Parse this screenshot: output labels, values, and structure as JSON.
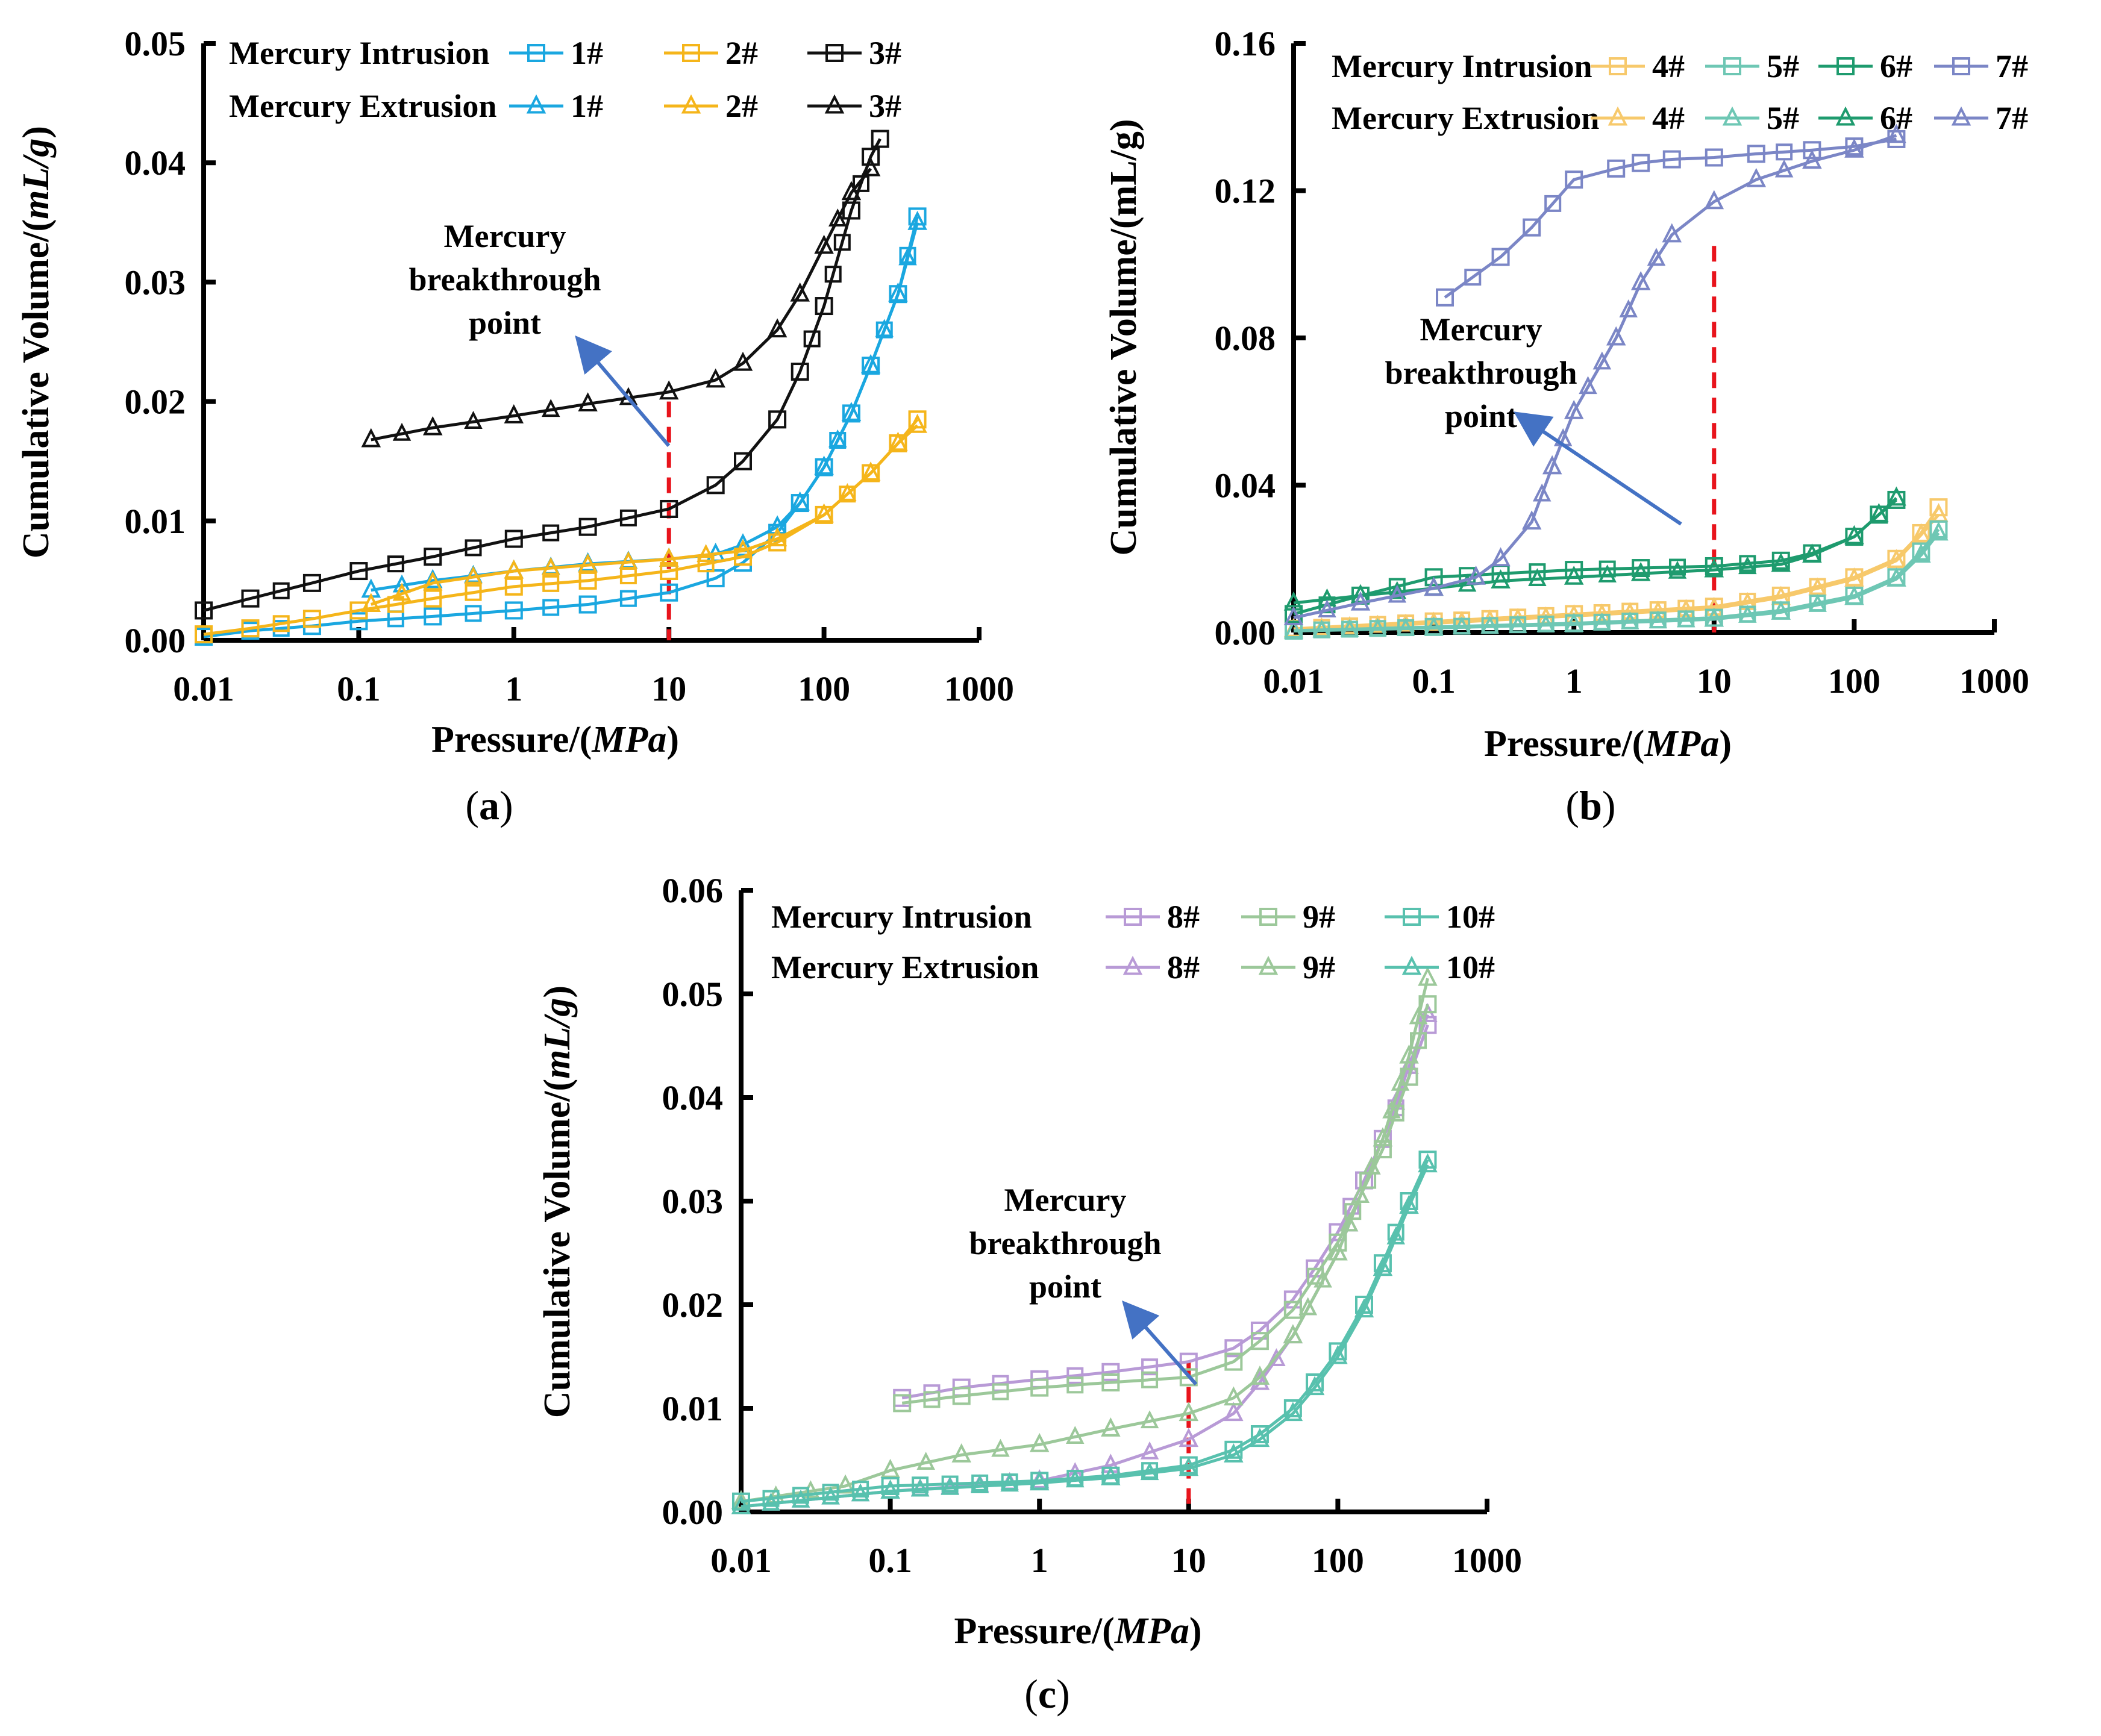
{
  "chart_data": [
    {
      "type": "line",
      "panel": "a",
      "caption": "(a)",
      "caption_pre": "(",
      "caption_letter": "a",
      "caption_post": ")",
      "xlabel": "Pressure/(MPa)",
      "xlabel_plain": "Pressure/(",
      "xlabel_italic": "MPa",
      "xlabel_close": ")",
      "ylabel": "Cumulative Volume/(mL/g)",
      "ylabel_plain": "Cumulative Volume/(",
      "ylabel_italic": "mL/g",
      "ylabel_close": ")",
      "xscale": "log",
      "xlim": [
        0.01,
        1000
      ],
      "ylim": [
        0,
        0.05
      ],
      "xticks": [
        "0.01",
        "0.1",
        "1",
        "10",
        "100",
        "1000"
      ],
      "yticks": [
        "0.00",
        "0.01",
        "0.02",
        "0.03",
        "0.04",
        "0.05"
      ],
      "legend_intrusion_label": "Mercury Intrusion",
      "legend_extrusion_label": "Mercury Extrusion",
      "breakthrough_label": [
        "Mercury",
        "breakthrough",
        "point"
      ],
      "breakthrough_pressure": 10,
      "series": [
        {
          "name": "1#",
          "kind": "intrusion",
          "color": "#1aa7e0",
          "x": [
            0.01,
            0.02,
            0.05,
            0.1,
            0.3,
            1,
            3,
            10,
            20,
            30,
            50,
            70,
            100,
            150,
            200,
            300,
            400
          ],
          "y": [
            0.0003,
            0.0008,
            0.0012,
            0.0016,
            0.002,
            0.0025,
            0.003,
            0.004,
            0.0052,
            0.0065,
            0.009,
            0.0115,
            0.0145,
            0.019,
            0.023,
            0.029,
            0.0355
          ]
        },
        {
          "name": "1#",
          "kind": "extrusion",
          "color": "#1aa7e0",
          "x": [
            0.12,
            0.3,
            1,
            3,
            10,
            20,
            30,
            50,
            70,
            100,
            150,
            200,
            300,
            400
          ],
          "y": [
            0.0042,
            0.005,
            0.0058,
            0.0064,
            0.0068,
            0.0072,
            0.008,
            0.0095,
            0.0115,
            0.0145,
            0.019,
            0.023,
            0.029,
            0.035
          ]
        },
        {
          "name": "2#",
          "kind": "intrusion",
          "color": "#f5b51a",
          "x": [
            0.01,
            0.02,
            0.05,
            0.1,
            0.3,
            1,
            3,
            10,
            30,
            50,
            100,
            200,
            300,
            400
          ],
          "y": [
            0.0005,
            0.001,
            0.0018,
            0.0025,
            0.0035,
            0.0045,
            0.005,
            0.0058,
            0.007,
            0.0082,
            0.0105,
            0.014,
            0.0165,
            0.0185
          ]
        },
        {
          "name": "2#",
          "kind": "extrusion",
          "color": "#f5b51a",
          "x": [
            0.12,
            0.3,
            1,
            3,
            10,
            30,
            50,
            100,
            200,
            300,
            400
          ],
          "y": [
            0.003,
            0.0048,
            0.0058,
            0.0063,
            0.0068,
            0.0075,
            0.0085,
            0.0105,
            0.014,
            0.0165,
            0.018
          ]
        },
        {
          "name": "3#",
          "kind": "intrusion",
          "color": "#111111",
          "x": [
            0.01,
            0.02,
            0.05,
            0.1,
            0.3,
            1,
            3,
            10,
            20,
            30,
            50,
            70,
            100,
            150,
            200,
            230
          ],
          "y": [
            0.0025,
            0.0035,
            0.0048,
            0.0058,
            0.007,
            0.0085,
            0.0095,
            0.011,
            0.013,
            0.015,
            0.0185,
            0.0225,
            0.028,
            0.036,
            0.0405,
            0.042
          ]
        },
        {
          "name": "3#",
          "kind": "extrusion",
          "color": "#111111",
          "x": [
            0.12,
            0.3,
            1,
            3,
            10,
            20,
            30,
            50,
            70,
            100,
            150,
            200
          ],
          "y": [
            0.0168,
            0.0178,
            0.0188,
            0.0198,
            0.0208,
            0.0218,
            0.0232,
            0.026,
            0.029,
            0.033,
            0.0375,
            0.0395
          ]
        }
      ]
    },
    {
      "type": "line",
      "panel": "b",
      "caption": "(b)",
      "caption_pre": "(",
      "caption_letter": "b",
      "caption_post": ")",
      "xlabel": "Pressure/(MPa)",
      "xlabel_plain": "Pressure/(",
      "xlabel_italic": "MPa",
      "xlabel_close": ")",
      "ylabel": "Cumulative Volume/(mL/g)",
      "ylabel_plain": "Cumulative Volume/(mL/g)",
      "xscale": "log",
      "xlim": [
        0.01,
        1000
      ],
      "ylim": [
        0,
        0.16
      ],
      "xticks": [
        "0.01",
        "0.1",
        "1",
        "10",
        "100",
        "1000"
      ],
      "yticks": [
        "0.00",
        "0.04",
        "0.08",
        "0.12",
        "0.16"
      ],
      "legend_intrusion_label": "Mercury Intrusion",
      "legend_extrusion_label": "Mercury Extrusion",
      "breakthrough_label": [
        "Mercury",
        "breakthrough",
        "point"
      ],
      "breakthrough_pressure": 10,
      "series": [
        {
          "name": "4#",
          "kind": "intrusion",
          "color": "#f7c96b",
          "x": [
            0.01,
            0.1,
            1,
            10,
            30,
            100,
            200,
            300,
            400
          ],
          "y": [
            0.001,
            0.003,
            0.005,
            0.007,
            0.01,
            0.015,
            0.02,
            0.027,
            0.034
          ]
        },
        {
          "name": "4#",
          "kind": "extrusion",
          "color": "#f7c96b",
          "x": [
            0.01,
            0.1,
            1,
            10,
            30,
            100,
            200,
            300,
            400
          ],
          "y": [
            0.0008,
            0.0025,
            0.0045,
            0.0065,
            0.0095,
            0.0145,
            0.0195,
            0.0265,
            0.032
          ]
        },
        {
          "name": "5#",
          "kind": "intrusion",
          "color": "#6ec7b4",
          "x": [
            0.01,
            0.1,
            1,
            10,
            30,
            100,
            200,
            300,
            400
          ],
          "y": [
            0.0005,
            0.0015,
            0.0025,
            0.004,
            0.006,
            0.01,
            0.015,
            0.022,
            0.028
          ]
        },
        {
          "name": "5#",
          "kind": "extrusion",
          "color": "#6ec7b4",
          "x": [
            0.01,
            0.1,
            1,
            10,
            30,
            100,
            200,
            300,
            400
          ],
          "y": [
            0.0004,
            0.0012,
            0.0022,
            0.0036,
            0.0055,
            0.0095,
            0.0145,
            0.021,
            0.027
          ]
        },
        {
          "name": "6#",
          "kind": "intrusion",
          "color": "#1e9b6e",
          "x": [
            0.01,
            0.03,
            0.1,
            0.3,
            1,
            3,
            10,
            30,
            50,
            100,
            150,
            200
          ],
          "y": [
            0.005,
            0.01,
            0.015,
            0.016,
            0.017,
            0.0175,
            0.018,
            0.0195,
            0.0215,
            0.026,
            0.032,
            0.036
          ]
        },
        {
          "name": "6#",
          "kind": "extrusion",
          "color": "#1e9b6e",
          "x": [
            0.01,
            0.03,
            0.1,
            0.3,
            1,
            3,
            10,
            30,
            50,
            100,
            150,
            200
          ],
          "y": [
            0.008,
            0.01,
            0.012,
            0.014,
            0.015,
            0.016,
            0.017,
            0.0185,
            0.021,
            0.026,
            0.032,
            0.0365
          ]
        },
        {
          "name": "7#",
          "kind": "intrusion",
          "color": "#7b86c6",
          "x": [
            0.12,
            0.3,
            0.5,
            1,
            2,
            3,
            5,
            10,
            20,
            50,
            100,
            200
          ],
          "y": [
            0.091,
            0.102,
            0.11,
            0.123,
            0.126,
            0.1275,
            0.1285,
            0.129,
            0.13,
            0.131,
            0.132,
            0.134
          ]
        },
        {
          "name": "7#",
          "kind": "extrusion",
          "color": "#7b86c6",
          "x": [
            0.01,
            0.03,
            0.1,
            0.2,
            0.3,
            0.5,
            0.7,
            1,
            2,
            3,
            5,
            10,
            20,
            50,
            100,
            200
          ],
          "y": [
            0.004,
            0.008,
            0.012,
            0.015,
            0.02,
            0.03,
            0.045,
            0.06,
            0.08,
            0.095,
            0.108,
            0.117,
            0.123,
            0.128,
            0.131,
            0.135
          ]
        }
      ]
    },
    {
      "type": "line",
      "panel": "c",
      "caption": "(c)",
      "caption_pre": "(",
      "caption_letter": "c",
      "caption_post": ")",
      "xlabel": "Pressure/(MPa)",
      "xlabel_plain": "Pressure/(",
      "xlabel_italic": "MPa",
      "xlabel_close": ")",
      "ylabel": "Cumulative Volume/(mL/g)",
      "ylabel_plain": "Cumulative Volume/(",
      "ylabel_italic": "mL/g",
      "ylabel_close": ")",
      "xscale": "log",
      "xlim": [
        0.01,
        1000
      ],
      "ylim": [
        0,
        0.06
      ],
      "xticks": [
        "0.01",
        "0.1",
        "1",
        "10",
        "100",
        "1000"
      ],
      "yticks": [
        "0.00",
        "0.01",
        "0.02",
        "0.03",
        "0.04",
        "0.05",
        "0.06"
      ],
      "legend_intrusion_label": "Mercury Intrusion",
      "legend_extrusion_label": "Mercury Extrusion",
      "breakthrough_label": [
        "Mercury",
        "breakthrough",
        "point"
      ],
      "breakthrough_pressure": 10,
      "series": [
        {
          "name": "8#",
          "kind": "intrusion",
          "color": "#b89ad6",
          "x": [
            0.12,
            0.3,
            1,
            3,
            10,
            20,
            30,
            50,
            70,
            100,
            150,
            200,
            300,
            400
          ],
          "y": [
            0.011,
            0.012,
            0.0128,
            0.0135,
            0.0145,
            0.0158,
            0.0175,
            0.0205,
            0.0235,
            0.027,
            0.032,
            0.036,
            0.042,
            0.047
          ]
        },
        {
          "name": "8#",
          "kind": "extrusion",
          "color": "#b89ad6",
          "x": [
            0.01,
            0.1,
            1,
            3,
            10,
            20,
            30,
            50,
            100,
            200,
            300,
            400
          ],
          "y": [
            0.0005,
            0.002,
            0.003,
            0.0045,
            0.007,
            0.0095,
            0.0125,
            0.017,
            0.025,
            0.036,
            0.043,
            0.048
          ]
        },
        {
          "name": "9#",
          "kind": "intrusion",
          "color": "#9cc89a",
          "x": [
            0.12,
            0.3,
            1,
            3,
            10,
            20,
            30,
            50,
            100,
            200,
            300,
            400
          ],
          "y": [
            0.0105,
            0.0112,
            0.012,
            0.0125,
            0.013,
            0.0145,
            0.0165,
            0.0195,
            0.026,
            0.035,
            0.042,
            0.049
          ]
        },
        {
          "name": "9#",
          "kind": "extrusion",
          "color": "#9cc89a",
          "x": [
            0.01,
            0.05,
            0.1,
            0.3,
            1,
            3,
            10,
            20,
            30,
            50,
            100,
            200,
            300,
            400
          ],
          "y": [
            0.001,
            0.0025,
            0.004,
            0.0055,
            0.0065,
            0.008,
            0.0095,
            0.011,
            0.013,
            0.017,
            0.025,
            0.036,
            0.044,
            0.0515
          ]
        },
        {
          "name": "10#",
          "kind": "intrusion",
          "color": "#58c1ae",
          "x": [
            0.01,
            0.1,
            1,
            3,
            10,
            20,
            30,
            50,
            70,
            100,
            150,
            200,
            300,
            400
          ],
          "y": [
            0.001,
            0.0025,
            0.003,
            0.0035,
            0.0045,
            0.006,
            0.0075,
            0.01,
            0.0125,
            0.0155,
            0.02,
            0.024,
            0.03,
            0.034
          ]
        },
        {
          "name": "10#",
          "kind": "extrusion",
          "color": "#58c1ae",
          "x": [
            0.01,
            0.1,
            1,
            3,
            10,
            20,
            30,
            50,
            70,
            100,
            150,
            200,
            300,
            400
          ],
          "y": [
            0.0005,
            0.002,
            0.0028,
            0.0033,
            0.0042,
            0.0055,
            0.007,
            0.0095,
            0.012,
            0.015,
            0.0195,
            0.0235,
            0.0295,
            0.0335
          ]
        }
      ]
    }
  ]
}
